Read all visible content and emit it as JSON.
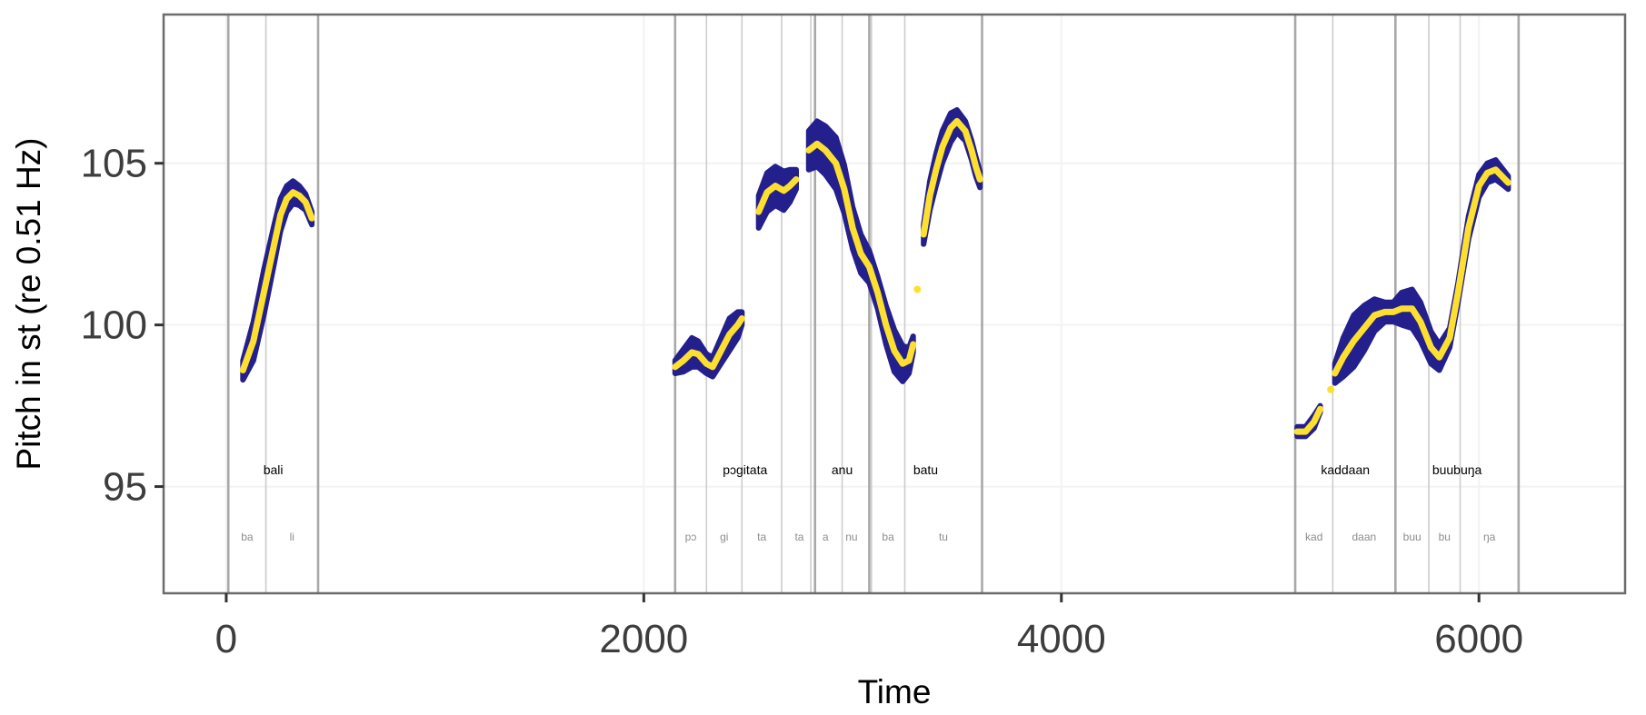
{
  "chart_data": {
    "type": "line",
    "xlabel": "Time",
    "ylabel": "Pitch in st (re 0.51 Hz)",
    "xlim": [
      -300,
      6700
    ],
    "ylim": [
      91.7,
      109.6
    ],
    "x_ticks": [
      {
        "v": 0,
        "label": "0"
      },
      {
        "v": 2000,
        "label": "2000"
      },
      {
        "v": 4000,
        "label": "4000"
      },
      {
        "v": 6000,
        "label": "6000"
      }
    ],
    "y_ticks": [
      {
        "v": 95,
        "label": "95"
      },
      {
        "v": 100,
        "label": "100"
      },
      {
        "v": 105,
        "label": "105"
      }
    ],
    "grid": true,
    "colors": {
      "ribbon": "#231f8c",
      "line": "#fde02f",
      "word_boundary": "#a8a8a8",
      "syllable_boundary": "#cccccc",
      "panel_border": "#6b6b6b"
    },
    "word_boundaries": [
      10,
      440,
      2150,
      2820,
      3080,
      3620,
      5120,
      5600,
      6190
    ],
    "syllable_boundaries": [
      190,
      2300,
      2470,
      2660,
      2800,
      2950,
      3090,
      3250,
      5300,
      5760,
      5910
    ],
    "words": [
      {
        "text": "bali",
        "x": 225
      },
      {
        "text": "pɔgitata",
        "x": 2485
      },
      {
        "text": "anu",
        "x": 2950
      },
      {
        "text": "batu",
        "x": 3350
      },
      {
        "text": "kaddaan",
        "x": 5360
      },
      {
        "text": "buubuŋa",
        "x": 5895
      }
    ],
    "syllables": [
      {
        "text": "ba",
        "x": 100
      },
      {
        "text": "li",
        "x": 315
      },
      {
        "text": "pɔ",
        "x": 2225
      },
      {
        "text": "gi",
        "x": 2385
      },
      {
        "text": "ta",
        "x": 2565
      },
      {
        "text": "ta",
        "x": 2745
      },
      {
        "text": "a",
        "x": 2870
      },
      {
        "text": "nu",
        "x": 2995
      },
      {
        "text": "ba",
        "x": 3170
      },
      {
        "text": "tu",
        "x": 3435
      },
      {
        "text": "kad",
        "x": 5210
      },
      {
        "text": "daan",
        "x": 5450
      },
      {
        "text": "buu",
        "x": 5680
      },
      {
        "text": "bu",
        "x": 5835
      },
      {
        "text": "ŋa",
        "x": 6050
      }
    ],
    "series": [
      {
        "segments": [
          {
            "points": [
              [
                80,
                98.6
              ],
              [
                130,
                99.5
              ],
              [
                180,
                101.0
              ],
              [
                230,
                102.5
              ],
              [
                260,
                103.4
              ],
              [
                290,
                103.9
              ],
              [
                320,
                104.1
              ],
              [
                350,
                104.0
              ],
              [
                380,
                103.8
              ],
              [
                410,
                103.3
              ]
            ],
            "band": [
              0.3,
              0.6,
              0.7,
              0.6,
              0.5,
              0.4,
              0.35,
              0.3,
              0.25,
              0.2
            ]
          },
          {
            "points": [
              [
                2150,
                98.7
              ],
              [
                2190,
                98.9
              ],
              [
                2230,
                99.15
              ],
              [
                2260,
                99.1
              ],
              [
                2300,
                98.8
              ],
              [
                2330,
                98.7
              ],
              [
                2370,
                99.2
              ],
              [
                2410,
                99.7
              ],
              [
                2450,
                100.0
              ],
              [
                2470,
                100.2
              ]
            ],
            "band": [
              0.2,
              0.35,
              0.45,
              0.4,
              0.3,
              0.3,
              0.4,
              0.5,
              0.4,
              0.2
            ]
          },
          {
            "points": [
              [
                2550,
                103.5
              ],
              [
                2590,
                104.1
              ],
              [
                2630,
                104.3
              ],
              [
                2670,
                104.15
              ],
              [
                2700,
                104.3
              ],
              [
                2730,
                104.5
              ]
            ],
            "band": [
              0.5,
              0.6,
              0.6,
              0.6,
              0.5,
              0.3
            ]
          },
          {
            "points": [
              [
                2790,
                105.4
              ],
              [
                2830,
                105.6
              ],
              [
                2870,
                105.4
              ],
              [
                2920,
                105.0
              ],
              [
                2960,
                104.2
              ],
              [
                3000,
                103.0
              ],
              [
                3040,
                102.2
              ],
              [
                3080,
                101.8
              ],
              [
                3120,
                101.0
              ],
              [
                3160,
                100.0
              ],
              [
                3200,
                99.2
              ],
              [
                3240,
                98.8
              ],
              [
                3270,
                98.9
              ],
              [
                3290,
                99.4
              ]
            ],
            "band": [
              0.6,
              0.7,
              0.75,
              0.8,
              0.75,
              0.65,
              0.6,
              0.5,
              0.5,
              0.6,
              0.65,
              0.55,
              0.4,
              0.25
            ]
          },
          {
            "points": [
              [
                3340,
                102.8
              ],
              [
                3370,
                104.0
              ],
              [
                3400,
                104.8
              ],
              [
                3430,
                105.5
              ],
              [
                3470,
                106.1
              ],
              [
                3500,
                106.3
              ],
              [
                3540,
                106.0
              ],
              [
                3570,
                105.4
              ],
              [
                3590,
                104.9
              ],
              [
                3610,
                104.5
              ]
            ],
            "band": [
              0.3,
              0.45,
              0.5,
              0.5,
              0.45,
              0.35,
              0.3,
              0.3,
              0.3,
              0.25
            ]
          },
          {
            "points": [
              [
                5130,
                96.7
              ],
              [
                5170,
                96.7
              ],
              [
                5210,
                97.0
              ],
              [
                5240,
                97.4
              ]
            ],
            "band": [
              0.15,
              0.15,
              0.2,
              0.1
            ]
          },
          {
            "points": [
              [
                5310,
                98.5
              ],
              [
                5350,
                99.0
              ],
              [
                5400,
                99.5
              ],
              [
                5450,
                99.9
              ],
              [
                5500,
                100.3
              ],
              [
                5550,
                100.4
              ],
              [
                5590,
                100.4
              ],
              [
                5630,
                100.5
              ],
              [
                5680,
                100.5
              ],
              [
                5720,
                100.1
              ],
              [
                5770,
                99.3
              ],
              [
                5810,
                99.0
              ],
              [
                5860,
                99.6
              ],
              [
                5900,
                101.0
              ],
              [
                5950,
                103.0
              ],
              [
                6000,
                104.3
              ],
              [
                6040,
                104.7
              ],
              [
                6080,
                104.8
              ],
              [
                6110,
                104.6
              ],
              [
                6140,
                104.4
              ]
            ],
            "band": [
              0.3,
              0.6,
              0.8,
              0.7,
              0.5,
              0.3,
              0.3,
              0.5,
              0.6,
              0.6,
              0.5,
              0.4,
              0.3,
              0.3,
              0.35,
              0.35,
              0.3,
              0.3,
              0.25,
              0.2
            ]
          }
        ],
        "dots": [
          [
            5290,
            98.0
          ],
          [
            3310,
            101.1
          ]
        ]
      }
    ]
  }
}
